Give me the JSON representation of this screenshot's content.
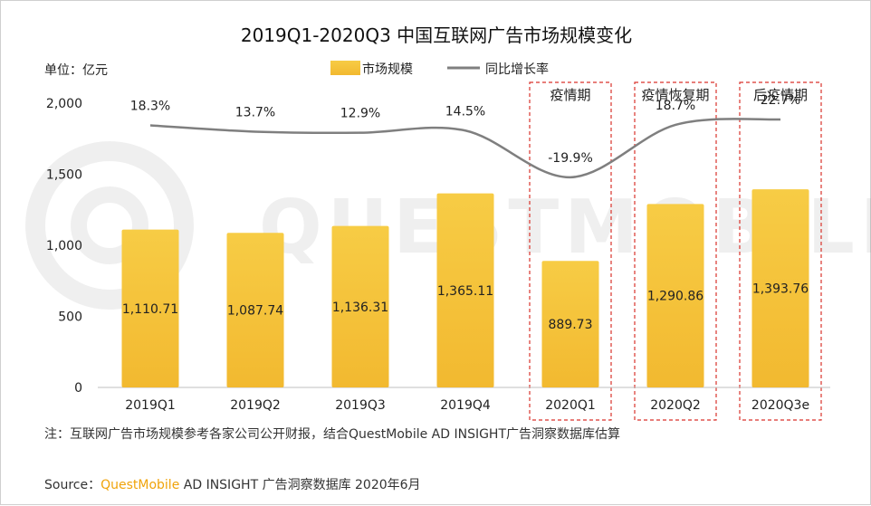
{
  "chart_data": {
    "type": "bar",
    "title": "2019Q1-2020Q3 中国互联网广告市场规模变化",
    "unit_label": "单位：亿元",
    "categories": [
      "2019Q1",
      "2019Q2",
      "2019Q3",
      "2019Q4",
      "2020Q1",
      "2020Q2",
      "2020Q3e"
    ],
    "series": [
      {
        "name": "市场规模",
        "type": "bar",
        "values": [
          1110.71,
          1087.74,
          1136.31,
          1365.11,
          889.73,
          1290.86,
          1393.76
        ]
      },
      {
        "name": "同比增长率",
        "type": "line",
        "values": [
          18.3,
          13.7,
          12.9,
          14.5,
          -19.9,
          18.7,
          22.7
        ],
        "unit": "%"
      }
    ],
    "bar_labels": [
      "1,110.71",
      "1,087.74",
      "1,136.31",
      "1,365.11",
      "889.73",
      "1,290.86",
      "1,393.76"
    ],
    "line_labels": [
      "18.3%",
      "13.7%",
      "12.9%",
      "14.5%",
      "-19.9%",
      "18.7%",
      "22.7%"
    ],
    "y_ticks": [
      "0",
      "500",
      "1,000",
      "1,500",
      "2,000"
    ],
    "y_tick_values": [
      0,
      500,
      1000,
      1500,
      2000
    ],
    "ylim": [
      0,
      2000
    ],
    "grid": false,
    "legend_position": "top-center",
    "annotations": [
      {
        "label": "疫情期",
        "category": "2020Q1"
      },
      {
        "label": "疫情恢复期",
        "category": "2020Q2"
      },
      {
        "label": "后疫情期",
        "category": "2020Q3e"
      }
    ],
    "colors": {
      "bar_top": "#f7cc45",
      "bar_bottom": "#f2b930",
      "line": "#7f7f7f",
      "highlight_box": "#d9322b"
    }
  },
  "watermark": "QUESTMOBILE",
  "footnote": "注：互联网广告市场规模参考各家公司公开财报，结合QuestMobile AD INSIGHT广告洞察数据库估算",
  "source": {
    "prefix": "Source：",
    "brand": "QuestMobile",
    "rest": " AD INSIGHT 广告洞察数据库 2020年6月"
  }
}
